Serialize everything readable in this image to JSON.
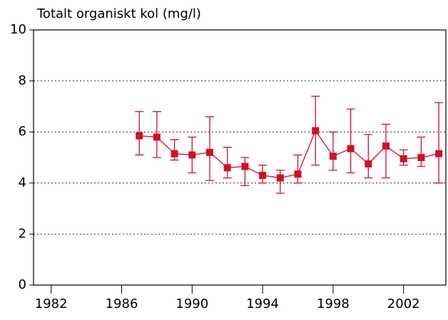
{
  "chart_data": {
    "type": "errorline",
    "title": "Totalt organiskt kol (mg/l)",
    "x": [
      1987,
      1988,
      1989,
      1990,
      1991,
      1992,
      1993,
      1994,
      1995,
      1996,
      1997,
      1998,
      1999,
      2000,
      2001,
      2002,
      2003,
      2004
    ],
    "values": [
      5.85,
      5.8,
      5.15,
      5.1,
      5.2,
      4.6,
      4.65,
      4.3,
      4.2,
      4.35,
      6.05,
      5.05,
      5.35,
      4.75,
      5.45,
      4.95,
      5.0,
      5.15
    ],
    "lower": [
      5.1,
      5.0,
      4.9,
      4.4,
      4.1,
      4.2,
      3.9,
      4.0,
      3.6,
      4.0,
      4.7,
      4.5,
      4.4,
      4.2,
      4.2,
      4.7,
      4.65,
      4.0
    ],
    "upper": [
      6.8,
      6.8,
      5.7,
      5.8,
      6.6,
      5.4,
      5.0,
      4.7,
      4.5,
      5.1,
      7.4,
      6.0,
      6.9,
      5.9,
      6.3,
      5.3,
      5.8,
      7.15
    ],
    "color": "#d0102a",
    "xlim": [
      1981,
      2004.4
    ],
    "xticks": [
      1982,
      1986,
      1990,
      1994,
      1998,
      2002
    ],
    "ylim": [
      0,
      10
    ],
    "yticks": [
      0,
      2,
      4,
      6,
      8,
      10
    ],
    "grid": true
  }
}
